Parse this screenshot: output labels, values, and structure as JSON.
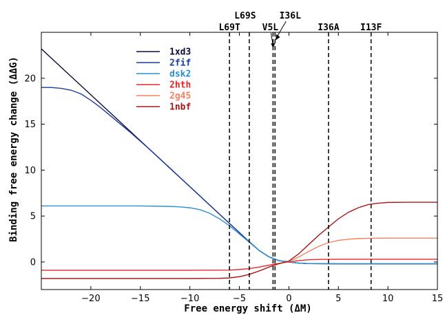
{
  "chart_data": {
    "type": "line",
    "title": "",
    "xlabel": "Free energy shift (ΔM)",
    "ylabel": "Binding free energy change (ΔΔG)",
    "xlim": [
      -25,
      15
    ],
    "ylim": [
      -3,
      25
    ],
    "xticks": [
      -20,
      -15,
      -10,
      -5,
      0,
      5,
      10,
      15
    ],
    "yticks": [
      0,
      5,
      10,
      15,
      20
    ],
    "grid": false,
    "legend_position": "top-left",
    "series": [
      {
        "name": "1xd3",
        "color": "#0b0b3b",
        "x": [
          -25,
          -22,
          -20,
          -18,
          -16,
          -14,
          -12,
          -10,
          -8,
          -6,
          -4,
          -3,
          -2,
          -1,
          0,
          1,
          2,
          5,
          10,
          15
        ],
        "y": [
          23.2,
          20.2,
          18.2,
          16.2,
          14.2,
          12.2,
          10.2,
          8.2,
          6.2,
          4.2,
          2.2,
          1.25,
          0.55,
          0.15,
          0.0,
          -0.12,
          -0.18,
          -0.2,
          -0.2,
          -0.2
        ]
      },
      {
        "name": "2fif",
        "color": "#1a3a9c",
        "x": [
          -25,
          -24,
          -23,
          -22,
          -21,
          -20,
          -19,
          -18,
          -16,
          -14,
          -12,
          -10,
          -8,
          -6,
          -4,
          -3,
          -2,
          -1,
          0,
          1,
          2,
          5,
          10,
          15
        ],
        "y": [
          19.0,
          19.0,
          18.9,
          18.7,
          18.3,
          17.6,
          16.8,
          15.9,
          14.1,
          12.2,
          10.2,
          8.2,
          6.2,
          4.2,
          2.2,
          1.25,
          0.55,
          0.15,
          0.0,
          -0.12,
          -0.18,
          -0.2,
          -0.2,
          -0.2
        ]
      },
      {
        "name": "dsk2",
        "color": "#2b8fd0",
        "x": [
          -25,
          -15,
          -12,
          -11,
          -10,
          -9,
          -8,
          -7,
          -6,
          -5,
          -4,
          -3,
          -2,
          -1,
          0,
          1,
          2,
          5,
          10,
          15
        ],
        "y": [
          6.1,
          6.1,
          6.05,
          6.0,
          5.9,
          5.7,
          5.3,
          4.7,
          3.95,
          3.05,
          2.15,
          1.25,
          0.55,
          0.15,
          0.0,
          -0.12,
          -0.18,
          -0.2,
          -0.2,
          -0.2
        ]
      },
      {
        "name": "2hth",
        "color": "#e8262a",
        "x": [
          -25,
          -10,
          -6,
          -5,
          -4,
          -3,
          -2,
          -1,
          0,
          1,
          2,
          3,
          5,
          10,
          15
        ],
        "y": [
          -0.9,
          -0.9,
          -0.88,
          -0.82,
          -0.72,
          -0.55,
          -0.35,
          -0.15,
          0.0,
          0.15,
          0.24,
          0.28,
          0.3,
          0.3,
          0.3
        ]
      },
      {
        "name": "2g45",
        "color": "#f58060",
        "x": [
          -25,
          -10,
          -7,
          -6,
          -5,
          -4,
          -3,
          -2,
          -1,
          0,
          1,
          2,
          3,
          4,
          5,
          6,
          7,
          8,
          10,
          15
        ],
        "y": [
          -1.8,
          -1.8,
          -1.78,
          -1.73,
          -1.6,
          -1.35,
          -0.98,
          -0.55,
          -0.18,
          0.05,
          0.55,
          1.15,
          1.7,
          2.1,
          2.35,
          2.48,
          2.55,
          2.58,
          2.6,
          2.6
        ]
      },
      {
        "name": "1nbf",
        "color": "#a81818",
        "x": [
          -25,
          -10,
          -7,
          -6,
          -5,
          -4,
          -3,
          -2,
          -1,
          0,
          1,
          2,
          3,
          4,
          5,
          6,
          7,
          8,
          9,
          10,
          12,
          15
        ],
        "y": [
          -1.8,
          -1.8,
          -1.78,
          -1.73,
          -1.6,
          -1.35,
          -0.98,
          -0.55,
          -0.18,
          0.1,
          0.9,
          1.9,
          2.9,
          3.8,
          4.7,
          5.4,
          5.9,
          6.25,
          6.4,
          6.48,
          6.5,
          6.5
        ]
      }
    ],
    "vertical_markers": [
      {
        "label": "L69T",
        "x": -6.0,
        "style": "dashed"
      },
      {
        "label": "L69S",
        "x": -4.0,
        "style": "dashed"
      },
      {
        "label": "V5L",
        "x": -1.6,
        "style": "dashed"
      },
      {
        "label": "I36L",
        "x": -1.4,
        "style": "dashed"
      },
      {
        "label": "I36A",
        "x": 4.0,
        "style": "dashed"
      },
      {
        "label": "I13F",
        "x": 8.3,
        "style": "dashed"
      }
    ]
  }
}
